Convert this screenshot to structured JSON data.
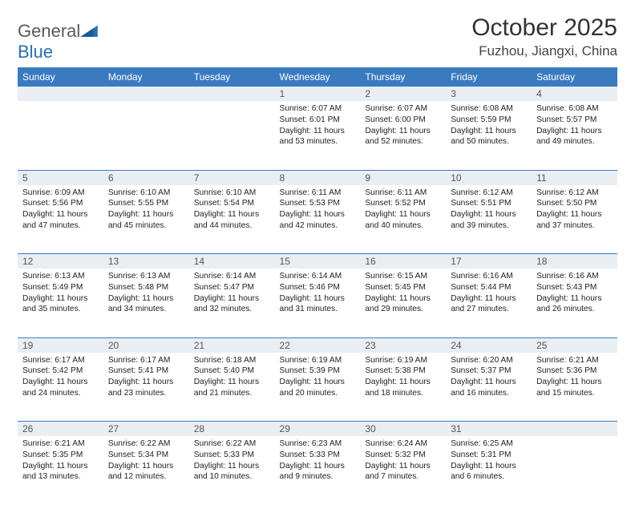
{
  "logo": {
    "text_a": "General",
    "text_b": "Blue"
  },
  "title": {
    "month": "October 2025",
    "location": "Fuzhou, Jiangxi, China"
  },
  "colors": {
    "header_bg": "#3a7bbf",
    "header_fg": "#ffffff",
    "daynum_bg": "#e9eef3",
    "rule": "#3a7bbf"
  },
  "day_headers": [
    "Sunday",
    "Monday",
    "Tuesday",
    "Wednesday",
    "Thursday",
    "Friday",
    "Saturday"
  ],
  "weeks": [
    [
      {
        "n": "",
        "sunrise": "",
        "sunset": "",
        "daylight": ""
      },
      {
        "n": "",
        "sunrise": "",
        "sunset": "",
        "daylight": ""
      },
      {
        "n": "",
        "sunrise": "",
        "sunset": "",
        "daylight": ""
      },
      {
        "n": "1",
        "sunrise": "Sunrise: 6:07 AM",
        "sunset": "Sunset: 6:01 PM",
        "daylight": "Daylight: 11 hours and 53 minutes."
      },
      {
        "n": "2",
        "sunrise": "Sunrise: 6:07 AM",
        "sunset": "Sunset: 6:00 PM",
        "daylight": "Daylight: 11 hours and 52 minutes."
      },
      {
        "n": "3",
        "sunrise": "Sunrise: 6:08 AM",
        "sunset": "Sunset: 5:59 PM",
        "daylight": "Daylight: 11 hours and 50 minutes."
      },
      {
        "n": "4",
        "sunrise": "Sunrise: 6:08 AM",
        "sunset": "Sunset: 5:57 PM",
        "daylight": "Daylight: 11 hours and 49 minutes."
      }
    ],
    [
      {
        "n": "5",
        "sunrise": "Sunrise: 6:09 AM",
        "sunset": "Sunset: 5:56 PM",
        "daylight": "Daylight: 11 hours and 47 minutes."
      },
      {
        "n": "6",
        "sunrise": "Sunrise: 6:10 AM",
        "sunset": "Sunset: 5:55 PM",
        "daylight": "Daylight: 11 hours and 45 minutes."
      },
      {
        "n": "7",
        "sunrise": "Sunrise: 6:10 AM",
        "sunset": "Sunset: 5:54 PM",
        "daylight": "Daylight: 11 hours and 44 minutes."
      },
      {
        "n": "8",
        "sunrise": "Sunrise: 6:11 AM",
        "sunset": "Sunset: 5:53 PM",
        "daylight": "Daylight: 11 hours and 42 minutes."
      },
      {
        "n": "9",
        "sunrise": "Sunrise: 6:11 AM",
        "sunset": "Sunset: 5:52 PM",
        "daylight": "Daylight: 11 hours and 40 minutes."
      },
      {
        "n": "10",
        "sunrise": "Sunrise: 6:12 AM",
        "sunset": "Sunset: 5:51 PM",
        "daylight": "Daylight: 11 hours and 39 minutes."
      },
      {
        "n": "11",
        "sunrise": "Sunrise: 6:12 AM",
        "sunset": "Sunset: 5:50 PM",
        "daylight": "Daylight: 11 hours and 37 minutes."
      }
    ],
    [
      {
        "n": "12",
        "sunrise": "Sunrise: 6:13 AM",
        "sunset": "Sunset: 5:49 PM",
        "daylight": "Daylight: 11 hours and 35 minutes."
      },
      {
        "n": "13",
        "sunrise": "Sunrise: 6:13 AM",
        "sunset": "Sunset: 5:48 PM",
        "daylight": "Daylight: 11 hours and 34 minutes."
      },
      {
        "n": "14",
        "sunrise": "Sunrise: 6:14 AM",
        "sunset": "Sunset: 5:47 PM",
        "daylight": "Daylight: 11 hours and 32 minutes."
      },
      {
        "n": "15",
        "sunrise": "Sunrise: 6:14 AM",
        "sunset": "Sunset: 5:46 PM",
        "daylight": "Daylight: 11 hours and 31 minutes."
      },
      {
        "n": "16",
        "sunrise": "Sunrise: 6:15 AM",
        "sunset": "Sunset: 5:45 PM",
        "daylight": "Daylight: 11 hours and 29 minutes."
      },
      {
        "n": "17",
        "sunrise": "Sunrise: 6:16 AM",
        "sunset": "Sunset: 5:44 PM",
        "daylight": "Daylight: 11 hours and 27 minutes."
      },
      {
        "n": "18",
        "sunrise": "Sunrise: 6:16 AM",
        "sunset": "Sunset: 5:43 PM",
        "daylight": "Daylight: 11 hours and 26 minutes."
      }
    ],
    [
      {
        "n": "19",
        "sunrise": "Sunrise: 6:17 AM",
        "sunset": "Sunset: 5:42 PM",
        "daylight": "Daylight: 11 hours and 24 minutes."
      },
      {
        "n": "20",
        "sunrise": "Sunrise: 6:17 AM",
        "sunset": "Sunset: 5:41 PM",
        "daylight": "Daylight: 11 hours and 23 minutes."
      },
      {
        "n": "21",
        "sunrise": "Sunrise: 6:18 AM",
        "sunset": "Sunset: 5:40 PM",
        "daylight": "Daylight: 11 hours and 21 minutes."
      },
      {
        "n": "22",
        "sunrise": "Sunrise: 6:19 AM",
        "sunset": "Sunset: 5:39 PM",
        "daylight": "Daylight: 11 hours and 20 minutes."
      },
      {
        "n": "23",
        "sunrise": "Sunrise: 6:19 AM",
        "sunset": "Sunset: 5:38 PM",
        "daylight": "Daylight: 11 hours and 18 minutes."
      },
      {
        "n": "24",
        "sunrise": "Sunrise: 6:20 AM",
        "sunset": "Sunset: 5:37 PM",
        "daylight": "Daylight: 11 hours and 16 minutes."
      },
      {
        "n": "25",
        "sunrise": "Sunrise: 6:21 AM",
        "sunset": "Sunset: 5:36 PM",
        "daylight": "Daylight: 11 hours and 15 minutes."
      }
    ],
    [
      {
        "n": "26",
        "sunrise": "Sunrise: 6:21 AM",
        "sunset": "Sunset: 5:35 PM",
        "daylight": "Daylight: 11 hours and 13 minutes."
      },
      {
        "n": "27",
        "sunrise": "Sunrise: 6:22 AM",
        "sunset": "Sunset: 5:34 PM",
        "daylight": "Daylight: 11 hours and 12 minutes."
      },
      {
        "n": "28",
        "sunrise": "Sunrise: 6:22 AM",
        "sunset": "Sunset: 5:33 PM",
        "daylight": "Daylight: 11 hours and 10 minutes."
      },
      {
        "n": "29",
        "sunrise": "Sunrise: 6:23 AM",
        "sunset": "Sunset: 5:33 PM",
        "daylight": "Daylight: 11 hours and 9 minutes."
      },
      {
        "n": "30",
        "sunrise": "Sunrise: 6:24 AM",
        "sunset": "Sunset: 5:32 PM",
        "daylight": "Daylight: 11 hours and 7 minutes."
      },
      {
        "n": "31",
        "sunrise": "Sunrise: 6:25 AM",
        "sunset": "Sunset: 5:31 PM",
        "daylight": "Daylight: 11 hours and 6 minutes."
      },
      {
        "n": "",
        "sunrise": "",
        "sunset": "",
        "daylight": ""
      }
    ]
  ]
}
